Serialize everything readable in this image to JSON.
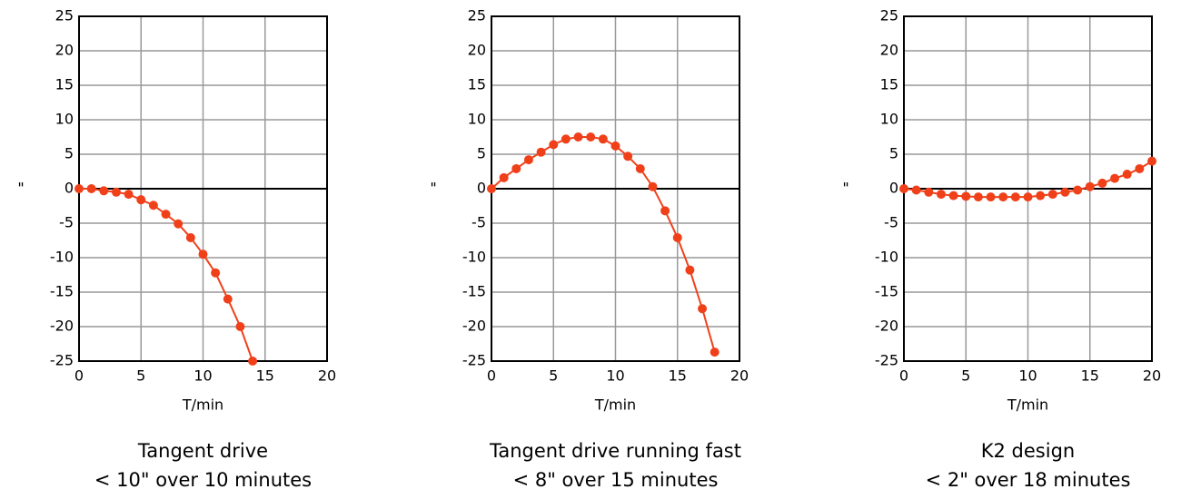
{
  "chart_data": [
    {
      "type": "line",
      "title": "Tangent drive",
      "subtitle": "< 10\" over 10 minutes",
      "xlabel": "T/min",
      "ylabel": "\"",
      "x": [
        0,
        1,
        2,
        3,
        4,
        5,
        6,
        7,
        8,
        9,
        10,
        11,
        12,
        13,
        14
      ],
      "series": [
        {
          "color": "#f0401a",
          "values": [
            0,
            0,
            -0.3,
            -0.5,
            -0.8,
            -1.6,
            -2.4,
            -3.7,
            -5.1,
            -7.1,
            -9.5,
            -12.2,
            -16,
            -20,
            -25
          ]
        }
      ],
      "xlim": [
        0,
        20
      ],
      "ylim": [
        -25,
        25
      ],
      "xticks": [
        0,
        5,
        10,
        15,
        20
      ],
      "yticks": [
        -25,
        -20,
        -15,
        -10,
        -5,
        0,
        5,
        10,
        15,
        20,
        25
      ],
      "grid": true
    },
    {
      "type": "line",
      "title": "Tangent drive running fast",
      "subtitle": "< 8\" over 15 minutes",
      "xlabel": "T/min",
      "ylabel": "\"",
      "x": [
        0,
        1,
        2,
        3,
        4,
        5,
        6,
        7,
        8,
        9,
        10,
        11,
        12,
        13,
        14,
        15,
        16,
        17,
        18
      ],
      "series": [
        {
          "color": "#f0401a",
          "values": [
            0,
            1.6,
            2.9,
            4.2,
            5.3,
            6.4,
            7.2,
            7.5,
            7.5,
            7.2,
            6.2,
            4.7,
            2.9,
            0.3,
            -3.2,
            -7.1,
            -11.8,
            -17.4,
            -23.7
          ]
        }
      ],
      "xlim": [
        0,
        20
      ],
      "ylim": [
        -25,
        25
      ],
      "xticks": [
        0,
        5,
        10,
        15,
        20
      ],
      "yticks": [
        -25,
        -20,
        -15,
        -10,
        -5,
        0,
        5,
        10,
        15,
        20,
        25
      ],
      "grid": true
    },
    {
      "type": "line",
      "title": "K2 design",
      "subtitle": "< 2\" over 18 minutes",
      "xlabel": "T/min",
      "ylabel": "\"",
      "x": [
        0,
        1,
        2,
        3,
        4,
        5,
        6,
        7,
        8,
        9,
        10,
        11,
        12,
        13,
        14,
        15,
        16,
        17,
        18,
        19,
        20
      ],
      "series": [
        {
          "color": "#f0401a",
          "values": [
            0,
            -0.2,
            -0.5,
            -0.8,
            -1.0,
            -1.1,
            -1.2,
            -1.2,
            -1.2,
            -1.2,
            -1.2,
            -1.0,
            -0.8,
            -0.5,
            -0.2,
            0.3,
            0.8,
            1.5,
            2.1,
            2.9,
            4.0
          ]
        }
      ],
      "xlim": [
        0,
        20
      ],
      "ylim": [
        -25,
        25
      ],
      "xticks": [
        0,
        5,
        10,
        15,
        20
      ],
      "yticks": [
        -25,
        -20,
        -15,
        -10,
        -5,
        0,
        5,
        10,
        15,
        20,
        25
      ],
      "grid": true
    }
  ]
}
